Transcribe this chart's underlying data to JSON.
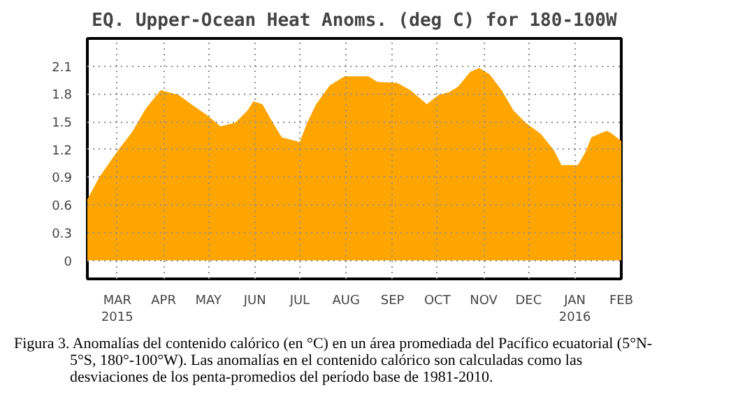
{
  "chart_data": {
    "type": "area",
    "title": "EQ. Upper-Ocean Heat Anoms. (deg C) for 180-100W",
    "x": [
      "2015-02-09",
      "2015-02-17",
      "2015-03-01",
      "2015-03-11",
      "2015-03-20",
      "2015-03-30",
      "2015-04-11",
      "2015-04-21",
      "2015-04-30",
      "2015-05-09",
      "2015-05-19",
      "2015-05-27",
      "2015-05-31",
      "2015-06-06",
      "2015-06-13",
      "2015-06-19",
      "2015-07-01",
      "2015-07-06",
      "2015-07-12",
      "2015-07-21",
      "2015-07-31",
      "2015-08-16",
      "2015-08-22",
      "2015-09-04",
      "2015-09-13",
      "2015-09-24",
      "2015-10-02",
      "2015-10-09",
      "2015-10-15",
      "2015-10-23",
      "2015-10-29",
      "2015-11-05",
      "2015-11-13",
      "2015-11-21",
      "2015-11-29",
      "2015-12-09",
      "2015-12-18",
      "2015-12-23",
      "2016-01-03",
      "2016-01-08",
      "2016-01-12",
      "2016-01-22",
      "2016-01-25",
      "2016-02-01"
    ],
    "values": [
      0.66,
      0.9,
      1.18,
      1.39,
      1.64,
      1.84,
      1.79,
      1.67,
      1.57,
      1.45,
      1.49,
      1.62,
      1.72,
      1.69,
      1.49,
      1.33,
      1.28,
      1.49,
      1.69,
      1.89,
      1.99,
      1.99,
      1.93,
      1.92,
      1.84,
      1.69,
      1.79,
      1.82,
      1.88,
      2.04,
      2.08,
      2.01,
      1.84,
      1.62,
      1.49,
      1.37,
      1.19,
      1.03,
      1.03,
      1.17,
      1.33,
      1.4,
      1.38,
      1.29
    ],
    "color": "#ffa500",
    "xlim": [
      "2015-02-09",
      "2016-02-01"
    ],
    "ylim": [
      -0.2,
      2.4
    ],
    "xticks": [
      {
        "value": "2015-03-01",
        "label": "MAR\n2015"
      },
      {
        "value": "2015-04-01",
        "label": "APR"
      },
      {
        "value": "2015-05-01",
        "label": "MAY"
      },
      {
        "value": "2015-06-01",
        "label": "JUN"
      },
      {
        "value": "2015-07-01",
        "label": "JUL"
      },
      {
        "value": "2015-08-01",
        "label": "AUG"
      },
      {
        "value": "2015-09-01",
        "label": "SEP"
      },
      {
        "value": "2015-10-01",
        "label": "OCT"
      },
      {
        "value": "2015-11-01",
        "label": "NOV"
      },
      {
        "value": "2015-12-01",
        "label": "DEC"
      },
      {
        "value": "2016-01-01",
        "label": "JAN\n2016"
      },
      {
        "value": "2016-02-01",
        "label": "FEB"
      }
    ],
    "yticks": [
      0,
      {
        "value": 0.3,
        "label": "0.3"
      },
      {
        "value": 0.6,
        "label": "0.6"
      },
      {
        "value": 0.9,
        "label": "0.9"
      },
      {
        "value": 1.2,
        "label": "1.2"
      },
      {
        "value": 1.5,
        "label": "1.5"
      },
      {
        "value": 1.8,
        "label": "1.8"
      },
      {
        "value": 2.1,
        "label": "2.1"
      }
    ],
    "grid": true,
    "annotations": [
      "Figura 3. Anomalías del contenido calórico (en °C) en un área promediada del Pacífico ecuatorial (5°N-5°S, 180°-100°W). Las anomalías en el contenido calórico son calculadas como las desviaciones de los penta-promedios del período base de 1981-2010."
    ]
  }
}
